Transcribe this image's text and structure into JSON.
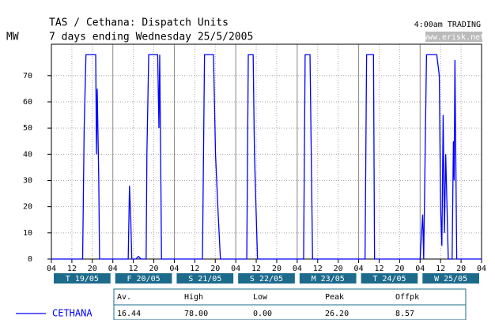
{
  "chart_data": {
    "type": "line",
    "title": "TAS / Cethana: Dispatch Units",
    "subtitle": "7 days ending Wednesday 25/5/2005",
    "y_label": "MW",
    "trading_note": "4:00am TRADING",
    "source": "www.erisk.net",
    "xlim": [
      0,
      168
    ],
    "ylim": [
      0,
      82
    ],
    "yticks": [
      0,
      10,
      20,
      30,
      40,
      50,
      60,
      70
    ],
    "xticks": [
      {
        "value": 0,
        "label": "04"
      },
      {
        "value": 8,
        "label": "12"
      },
      {
        "value": 16,
        "label": "20"
      },
      {
        "value": 24,
        "label": "04"
      },
      {
        "value": 32,
        "label": "12"
      },
      {
        "value": 40,
        "label": "20"
      },
      {
        "value": 48,
        "label": "04"
      },
      {
        "value": 56,
        "label": "12"
      },
      {
        "value": 64,
        "label": "20"
      },
      {
        "value": 72,
        "label": "04"
      },
      {
        "value": 80,
        "label": "12"
      },
      {
        "value": 88,
        "label": "20"
      },
      {
        "value": 96,
        "label": "04"
      },
      {
        "value": 104,
        "label": "12"
      },
      {
        "value": 112,
        "label": "20"
      },
      {
        "value": 120,
        "label": "04"
      },
      {
        "value": 128,
        "label": "12"
      },
      {
        "value": 136,
        "label": "20"
      },
      {
        "value": 144,
        "label": "04"
      },
      {
        "value": 152,
        "label": "12"
      },
      {
        "value": 160,
        "label": "20"
      },
      {
        "value": 168,
        "label": "04"
      }
    ],
    "day_labels": [
      "T 19/05",
      "F 20/05",
      "S 21/05",
      "S 22/05",
      "M 23/05",
      "T 24/05",
      "W 25/05"
    ],
    "grid": true,
    "series": [
      {
        "name": "CETHANA",
        "color": "#0000ff",
        "x": [
          0,
          12.2,
          12.8,
          13.5,
          17.3,
          17.6,
          17.9,
          18.5,
          18.8,
          30,
          30.5,
          31,
          31.4,
          33,
          34,
          35,
          37,
          37.3,
          38,
          41.5,
          42,
          42.3,
          42.8,
          43,
          59,
          59.8,
          63.3,
          64.1,
          65,
          66,
          76.3,
          76.9,
          78.8,
          79.3,
          80.5,
          98.5,
          99.1,
          101,
          102,
          122.5,
          123.1,
          125.8,
          126.2,
          144,
          145,
          145.4,
          146.5,
          150.5,
          151.5,
          152,
          152.5,
          153,
          153.5,
          154,
          155,
          156.5,
          157,
          157.3,
          157.6,
          158.3,
          168
        ],
        "values": [
          0,
          0,
          50,
          78,
          78,
          40,
          65,
          30,
          0,
          0,
          28,
          15,
          0,
          0,
          1,
          0,
          0,
          40,
          78,
          78,
          50,
          78,
          25,
          0,
          0,
          78,
          78,
          40,
          20,
          0,
          0,
          78,
          78,
          40,
          0,
          0,
          78,
          78,
          0,
          0,
          78,
          78,
          0,
          0,
          17,
          0,
          78,
          78,
          70,
          20,
          5,
          55,
          10,
          40,
          0,
          0,
          45,
          30,
          76,
          0,
          0
        ]
      }
    ],
    "stats": {
      "headers": [
        "Av.",
        "High",
        "Low",
        "Peak",
        "Offpk"
      ],
      "values": [
        "16.44",
        "78.00",
        "0.00",
        "26.20",
        "8.57"
      ]
    }
  }
}
